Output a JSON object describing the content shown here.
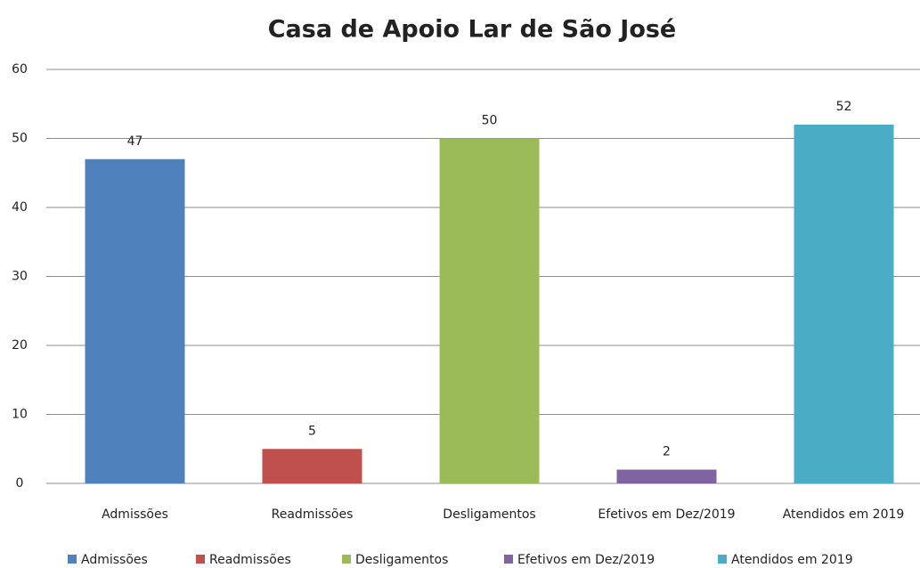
{
  "chart_data": {
    "type": "bar",
    "title": "Casa de Apoio Lar de São José",
    "categories": [
      "Admissões",
      "Readmissões",
      "Desligamentos",
      "Efetivos em Dez/2019",
      "Atendidos em 2019"
    ],
    "values": [
      47,
      5,
      50,
      2,
      52
    ],
    "colors": [
      "#4f81bd",
      "#c0504d",
      "#9bbb59",
      "#8064a2",
      "#4bacc6"
    ],
    "ylim": [
      0,
      60
    ],
    "yticks": [
      0,
      10,
      20,
      30,
      40,
      50,
      60
    ],
    "grid": true,
    "legend": "bottom"
  }
}
